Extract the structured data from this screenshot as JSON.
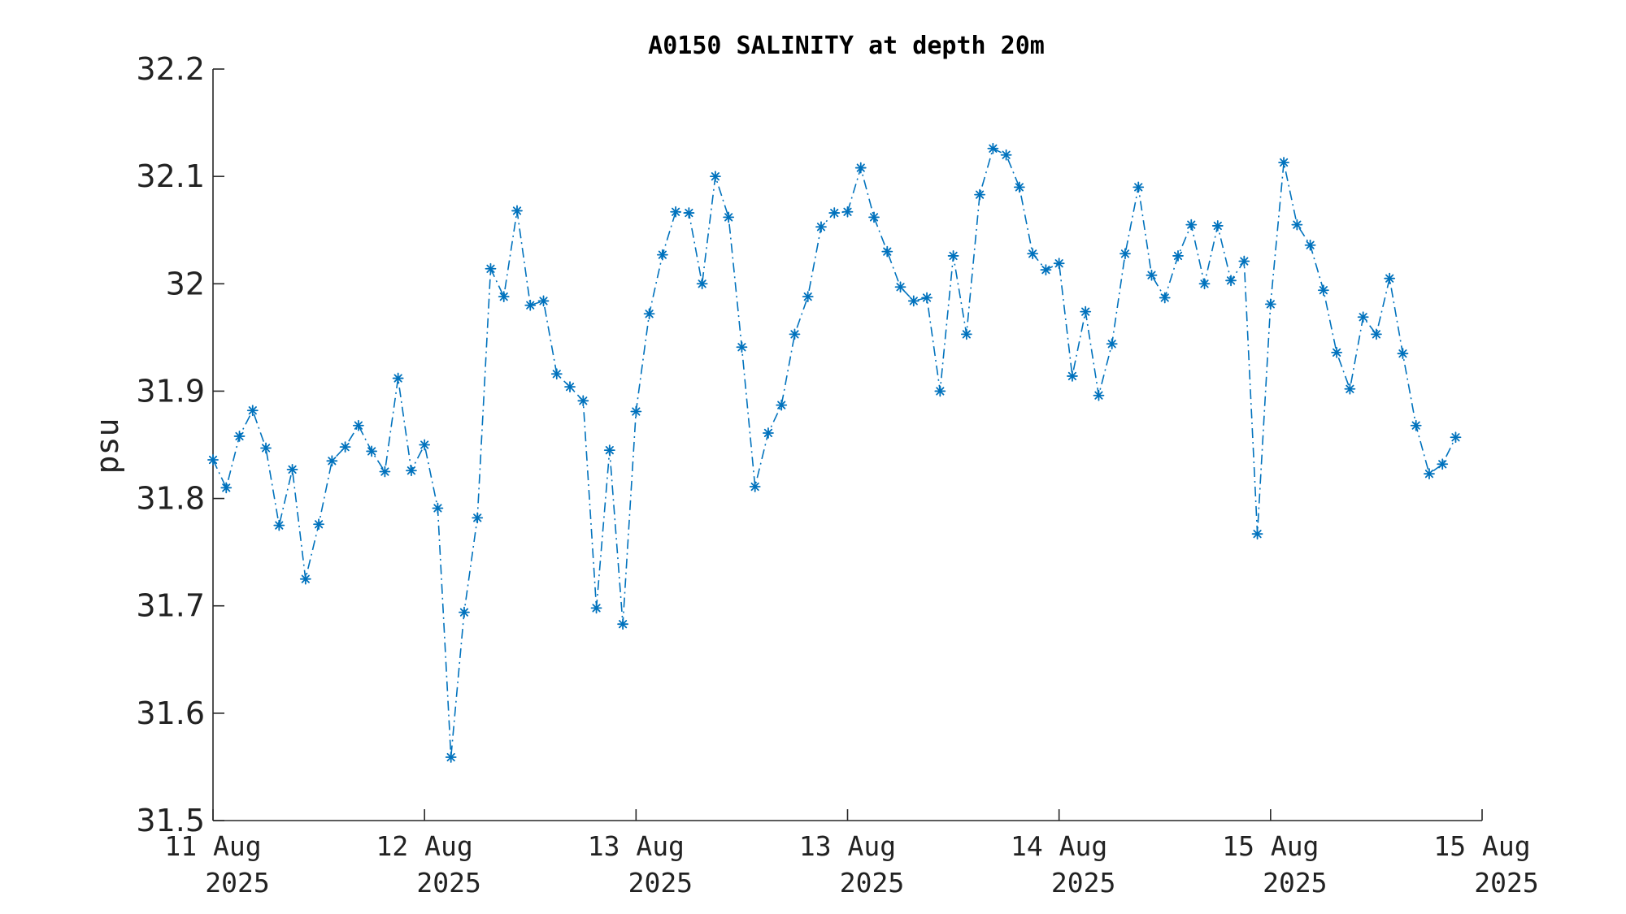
{
  "chart_data": {
    "type": "line",
    "title": "A0150 SALINITY at depth 20m",
    "xlabel": "",
    "ylabel": "psu",
    "ylim": [
      31.5,
      32.2
    ],
    "xlim": [
      "2025-08-11 00:00",
      "2025-08-17 00:00"
    ],
    "yticks": [
      "31.5",
      "31.6",
      "31.7",
      "31.8",
      "31.9",
      "32",
      "32.1",
      "32.2"
    ],
    "xticks": [
      {
        "line1": "11 Aug",
        "line2": "2025"
      },
      {
        "line1": "12 Aug",
        "line2": "2025"
      },
      {
        "line1": "13 Aug",
        "line2": "2025"
      },
      {
        "line1": "13 Aug",
        "line2": "2025"
      },
      {
        "line1": "14 Aug",
        "line2": "2025"
      },
      {
        "line1": "15 Aug",
        "line2": "2025"
      },
      {
        "line1": "15 Aug",
        "line2": "2025"
      }
    ],
    "series": [
      {
        "color": "#0072bd",
        "line_style": "dash-dot",
        "marker": "asterisk",
        "interval_hours": 1.5,
        "start": "2025-08-11 00:00",
        "values": [
          31.836,
          31.81,
          31.858,
          31.882,
          31.847,
          31.775,
          31.827,
          31.725,
          31.776,
          31.835,
          31.848,
          31.868,
          31.844,
          31.825,
          31.912,
          31.826,
          31.85,
          31.791,
          31.559,
          31.694,
          31.782,
          32.014,
          31.988,
          32.068,
          31.98,
          31.984,
          31.916,
          31.904,
          31.891,
          31.698,
          31.845,
          31.683,
          31.881,
          31.972,
          32.027,
          32.067,
          32.066,
          32.0,
          32.1,
          32.062,
          31.941,
          31.811,
          31.861,
          31.887,
          31.953,
          31.988,
          32.053,
          32.066,
          32.067,
          32.108,
          32.062,
          32.03,
          31.997,
          31.984,
          31.987,
          31.9,
          32.026,
          31.953,
          32.083,
          32.126,
          32.12,
          32.09,
          32.028,
          32.013,
          32.019,
          31.914,
          31.974,
          31.896,
          31.944,
          32.028,
          32.09,
          32.008,
          31.987,
          32.026,
          32.055,
          32.0,
          32.054,
          32.003,
          32.021,
          31.767,
          31.981,
          32.113,
          32.055,
          32.036,
          31.994,
          31.936,
          31.902,
          31.969,
          31.953,
          32.005,
          31.935,
          31.868,
          31.823,
          31.832,
          31.857
        ]
      }
    ]
  }
}
